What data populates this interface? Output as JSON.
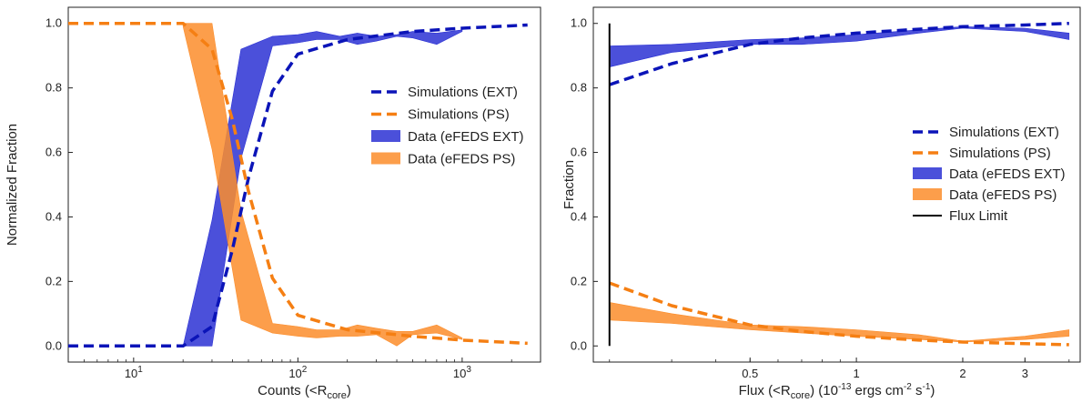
{
  "chart_data": [
    {
      "type": "line",
      "xscale": "log",
      "xlim": [
        4,
        3000
      ],
      "ylim": [
        -0.05,
        1.05
      ],
      "xlabel": "Counts (<R",
      "xlabel_sub": "core",
      "xlabel_suffix": ")",
      "ylabel": "Normalized Fraction",
      "xticks": [
        {
          "v": 10,
          "base": "10",
          "exp": "1"
        },
        {
          "v": 100,
          "base": "10",
          "exp": "2"
        },
        {
          "v": 1000,
          "base": "10",
          "exp": "3"
        }
      ],
      "yticks": [
        {
          "v": 0,
          "label": "0.0"
        },
        {
          "v": 0.2,
          "label": "0.2"
        },
        {
          "v": 0.4,
          "label": "0.4"
        },
        {
          "v": 0.6,
          "label": "0.6"
        },
        {
          "v": 0.8,
          "label": "0.8"
        },
        {
          "v": 1.0,
          "label": "1.0"
        }
      ],
      "series": [
        {
          "name": "Simulations (EXT)",
          "kind": "dashed",
          "color": "#0b14b8",
          "x": [
            4,
            10,
            20,
            30,
            40,
            50,
            70,
            100,
            200,
            500,
            1000,
            2500
          ],
          "y": [
            0.0,
            0.0,
            0.0,
            0.06,
            0.3,
            0.52,
            0.79,
            0.905,
            0.95,
            0.975,
            0.985,
            0.995
          ]
        },
        {
          "name": "Simulations (PS)",
          "kind": "dashed",
          "color": "#f57f13",
          "x": [
            4,
            10,
            20,
            30,
            40,
            50,
            70,
            100,
            200,
            500,
            1000,
            2500
          ],
          "y": [
            1.0,
            1.0,
            1.0,
            0.92,
            0.7,
            0.48,
            0.21,
            0.095,
            0.05,
            0.03,
            0.018,
            0.008
          ]
        },
        {
          "name": "Data (eFEDS EXT)",
          "kind": "band",
          "color": "#2b31d4",
          "x": [
            20,
            30,
            45,
            70,
            100,
            130,
            180,
            230,
            300,
            400,
            500,
            700,
            1000
          ],
          "lo": [
            0.0,
            0.0,
            0.58,
            0.93,
            0.94,
            0.95,
            0.95,
            0.935,
            0.945,
            0.96,
            0.955,
            0.935,
            0.975
          ],
          "hi": [
            0.0,
            0.39,
            0.92,
            0.96,
            0.965,
            0.975,
            0.96,
            0.97,
            0.96,
            0.965,
            0.975,
            0.97,
            0.98
          ]
        },
        {
          "name": "Data (eFEDS PS)",
          "kind": "band",
          "color": "#fb8d2c",
          "x": [
            20,
            30,
            45,
            70,
            100,
            130,
            180,
            230,
            300,
            400,
            500,
            700,
            1000
          ],
          "lo": [
            0.99,
            0.61,
            0.08,
            0.04,
            0.03,
            0.025,
            0.03,
            0.03,
            0.035,
            0.0,
            0.035,
            0.04,
            0.02
          ],
          "hi": [
            1.0,
            1.0,
            0.42,
            0.07,
            0.06,
            0.05,
            0.05,
            0.065,
            0.055,
            0.045,
            0.045,
            0.065,
            0.025
          ]
        }
      ],
      "legend": {
        "position": "center-right"
      }
    },
    {
      "type": "line",
      "xscale": "log",
      "xlim": [
        0.18,
        4.3
      ],
      "ylim": [
        -0.05,
        1.05
      ],
      "xlabel": "Flux (<R",
      "xlabel_sub": "core",
      "xlabel_suffix": ") (10",
      "xlabel_sup": "-13",
      "xlabel_suffix2": " ergs cm",
      "xlabel_sup2": "-2",
      "xlabel_suffix3": " s",
      "xlabel_sup3": "-1",
      "xlabel_end": ")",
      "ylabel": "Fraction",
      "xticks": [
        {
          "v": 0.5,
          "label": "0.5"
        },
        {
          "v": 1,
          "label": "1"
        },
        {
          "v": 2,
          "label": "2"
        },
        {
          "v": 3,
          "label": "3"
        }
      ],
      "yticks": [
        {
          "v": 0,
          "label": "0.0"
        },
        {
          "v": 0.2,
          "label": "0.2"
        },
        {
          "v": 0.4,
          "label": "0.4"
        },
        {
          "v": 0.6,
          "label": "0.6"
        },
        {
          "v": 0.8,
          "label": "0.8"
        },
        {
          "v": 1.0,
          "label": "1.0"
        }
      ],
      "flux_limit": {
        "x": 0.2,
        "y0": 0.0,
        "y1": 1.0,
        "color": "#000000"
      },
      "series": [
        {
          "name": "Simulations (EXT)",
          "kind": "dashed",
          "color": "#0b14b8",
          "x": [
            0.2,
            0.3,
            0.5,
            0.7,
            1.0,
            1.5,
            2.0,
            3.0,
            4.0
          ],
          "y": [
            0.81,
            0.875,
            0.935,
            0.955,
            0.97,
            0.982,
            0.99,
            0.995,
            1.0
          ]
        },
        {
          "name": "Simulations (PS)",
          "kind": "dashed",
          "color": "#f57f13",
          "x": [
            0.2,
            0.3,
            0.5,
            0.7,
            1.0,
            1.5,
            2.0,
            3.0,
            4.0
          ],
          "y": [
            0.195,
            0.125,
            0.065,
            0.045,
            0.03,
            0.018,
            0.012,
            0.007,
            0.004
          ]
        },
        {
          "name": "Data (eFEDS EXT)",
          "kind": "band",
          "color": "#2b31d4",
          "x": [
            0.2,
            0.3,
            0.5,
            0.7,
            1.0,
            1.5,
            2.0,
            3.0,
            4.0
          ],
          "lo": [
            0.865,
            0.91,
            0.935,
            0.935,
            0.945,
            0.97,
            0.985,
            0.975,
            0.95
          ],
          "hi": [
            0.93,
            0.935,
            0.95,
            0.955,
            0.965,
            0.98,
            0.99,
            0.985,
            0.97
          ]
        },
        {
          "name": "Data (eFEDS PS)",
          "kind": "band",
          "color": "#fb8d2c",
          "x": [
            0.2,
            0.3,
            0.5,
            0.7,
            1.0,
            1.5,
            2.0,
            3.0,
            4.0
          ],
          "lo": [
            0.08,
            0.07,
            0.05,
            0.04,
            0.03,
            0.02,
            0.012,
            0.02,
            0.03
          ],
          "hi": [
            0.135,
            0.1,
            0.065,
            0.06,
            0.05,
            0.035,
            0.015,
            0.03,
            0.05
          ]
        }
      ],
      "extra_legend": "Flux Limit",
      "legend": {
        "position": "center-right"
      }
    }
  ]
}
